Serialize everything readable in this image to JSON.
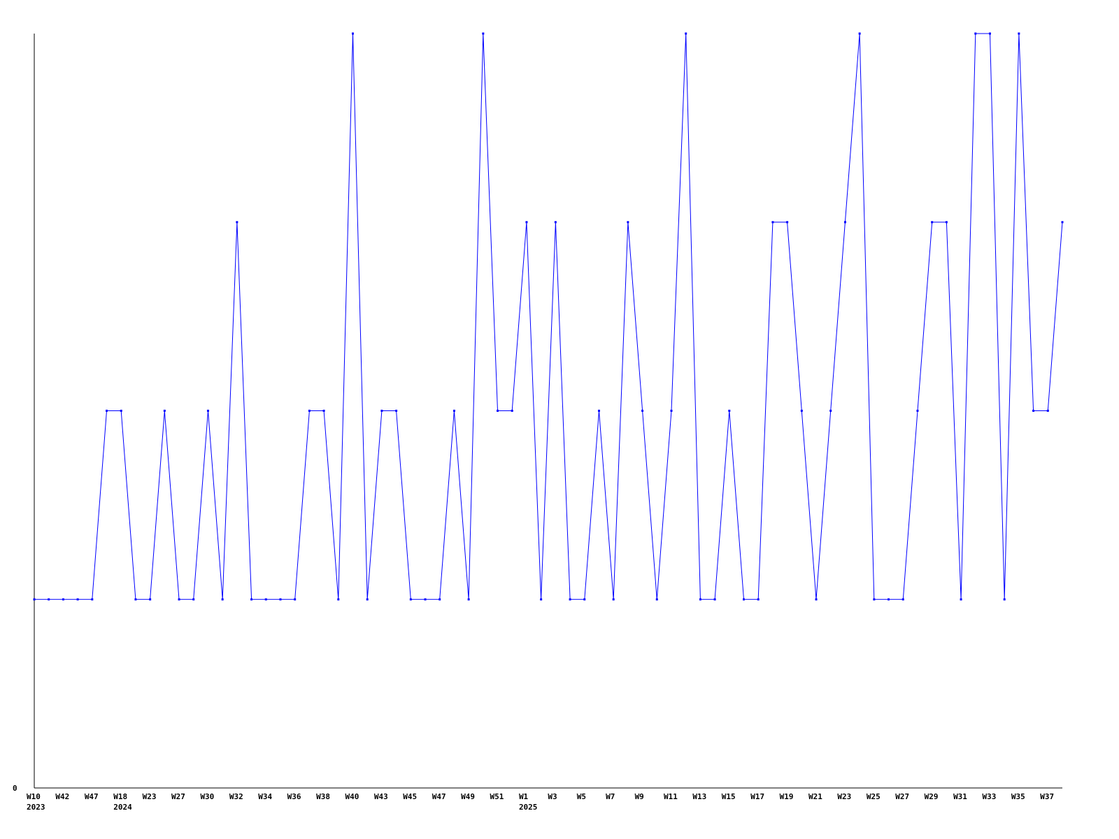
{
  "chart_data": {
    "type": "line",
    "title": "",
    "xlabel": "",
    "ylabel": "",
    "ylim": [
      0,
      4
    ],
    "y_tick_labels": [
      "0"
    ],
    "grid": false,
    "line_color": "#0000ff",
    "axis_color": "#000000",
    "x_tick_labels": [
      "W10",
      "W42",
      "W47",
      "W18",
      "W23",
      "W27",
      "W30",
      "W32",
      "W34",
      "W36",
      "W38",
      "W40",
      "W43",
      "W45",
      "W47",
      "W49",
      "W51",
      "W1",
      "W3",
      "W5",
      "W7",
      "W9",
      "W11",
      "W13",
      "W15",
      "W17",
      "W19",
      "W21",
      "W23",
      "W25",
      "W27",
      "W29",
      "W31",
      "W33",
      "W35",
      "W37"
    ],
    "year_labels": [
      {
        "tick_index": 0,
        "label": "2023"
      },
      {
        "tick_index": 3,
        "label": "2024"
      },
      {
        "tick_index": 17,
        "label": "2025"
      }
    ],
    "values": [
      1,
      1,
      1,
      1,
      1,
      2,
      2,
      1,
      1,
      2,
      1,
      1,
      2,
      1,
      3,
      1,
      1,
      1,
      1,
      2,
      2,
      1,
      4,
      1,
      2,
      2,
      1,
      1,
      1,
      2,
      1,
      4,
      2,
      2,
      3,
      1,
      3,
      1,
      1,
      2,
      1,
      3,
      2,
      1,
      2,
      4,
      1,
      1,
      2,
      1,
      1,
      3,
      3,
      2,
      1,
      2,
      3,
      4,
      1,
      1,
      1,
      2,
      3,
      3,
      1,
      4,
      4,
      1,
      4,
      2,
      2,
      3
    ]
  }
}
